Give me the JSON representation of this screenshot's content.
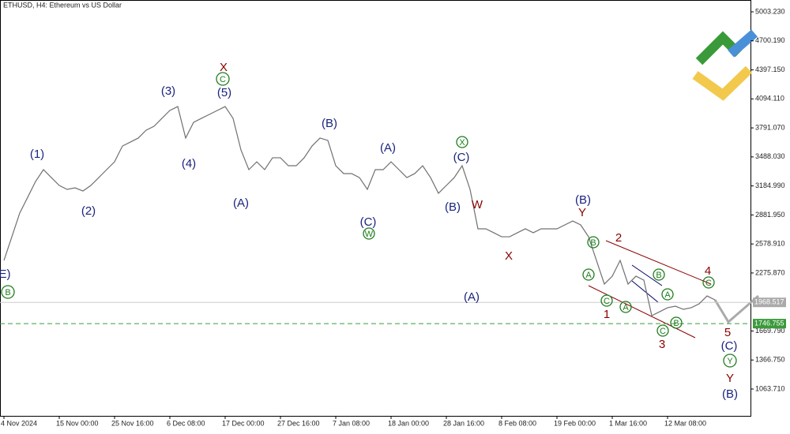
{
  "chart_data": {
    "type": "line",
    "title": "ETHUSD, H4:  Ethereum vs US Dollar",
    "categories": [
      "4 Nov 2024",
      null,
      null,
      null,
      null,
      null,
      null,
      "15 Nov 00:00",
      null,
      null,
      null,
      null,
      null,
      null,
      "25 Nov 16:00",
      null,
      null,
      null,
      null,
      null,
      null,
      "6 Dec 08:00",
      null,
      null,
      null,
      null,
      null,
      null,
      "17 Dec 00:00",
      null,
      null,
      null,
      null,
      null,
      null,
      "27 Dec 16:00",
      null,
      null,
      null,
      null,
      null,
      null,
      "7 Jan 08:00",
      null,
      null,
      null,
      null,
      null,
      null,
      "18 Jan 00:00",
      null,
      null,
      null,
      null,
      null,
      null,
      "28 Jan 16:00",
      null,
      null,
      null,
      null,
      null,
      null,
      "8 Feb 08:00",
      null,
      null,
      null,
      null,
      null,
      null,
      "19 Feb 00:00",
      null,
      null,
      null,
      null,
      null,
      null,
      "1 Mar 16:00",
      null,
      null,
      null,
      null,
      null,
      null,
      "12 Mar 08:00",
      null,
      null,
      null,
      null,
      null,
      null
    ],
    "series": [
      {
        "name": "ETHUSD",
        "color": "#707070",
        "values": [
          2407,
          2654,
          2902,
          3066,
          3231,
          3355,
          3272,
          3190,
          3149,
          3165,
          3132,
          3190,
          3272,
          3355,
          3437,
          3602,
          3643,
          3685,
          3767,
          3808,
          3891,
          3973,
          4014,
          3685,
          3849,
          3891,
          3932,
          3973,
          4014,
          3891,
          3561,
          3355,
          3437,
          3355,
          3479,
          3479,
          3396,
          3396,
          3479,
          3602,
          3685,
          3660,
          3396,
          3314,
          3314,
          3272,
          3149,
          3355,
          3355,
          3437,
          3355,
          3272,
          3314,
          3396,
          3272,
          3108,
          3190,
          3272,
          3396,
          3149,
          2737,
          2737,
          2696,
          2654,
          2654,
          2696,
          2737,
          2696,
          2737,
          2737,
          2737,
          2778,
          2819,
          2778,
          2654,
          2407,
          2160,
          2242,
          2407,
          2160,
          2242,
          2201,
          1830,
          1871,
          1913,
          1929,
          1896,
          1913,
          1954,
          2036,
          1995
        ]
      }
    ],
    "ylim": [
      783.5,
      5126.9
    ],
    "yticks": [
      {
        "value": 5003.23,
        "label": "5003.230"
      },
      {
        "value": 4700.19,
        "label": "4700.190"
      },
      {
        "value": 4397.15,
        "label": "4397.150"
      },
      {
        "value": 4094.11,
        "label": "4094.110"
      },
      {
        "value": 3791.07,
        "label": "3791.070"
      },
      {
        "value": 3488.03,
        "label": "3488.030"
      },
      {
        "value": 3184.99,
        "label": "3184.990"
      },
      {
        "value": 2881.95,
        "label": "2881.950"
      },
      {
        "value": 2578.91,
        "label": "2578.910"
      },
      {
        "value": 2275.87,
        "label": "2275.870"
      },
      {
        "value": 1669.79,
        "label": "1669.790"
      },
      {
        "value": 1366.75,
        "label": "1366.750"
      },
      {
        "value": 1063.71,
        "label": "1063.710"
      }
    ],
    "current_price": {
      "value": 1968.517,
      "label": "1968.517"
    },
    "level": {
      "value": 1746.755,
      "label": "1746.755"
    },
    "annotations": [
      "E)",
      "B",
      "(1)",
      "(2)",
      "(3)",
      "(4)",
      "X",
      "C",
      "(5)",
      "(A)",
      "(B)",
      "(C)",
      "W",
      "(A)",
      "X",
      "(C)",
      "(B)",
      "W",
      "(A)",
      "X",
      "(B)",
      "Y",
      "B",
      "A",
      "2",
      "C",
      "1",
      "A",
      "B",
      "A",
      "B",
      "C",
      "3",
      "4",
      "C",
      "5",
      "(C)",
      "Y",
      "Y",
      "(B)"
    ]
  }
}
